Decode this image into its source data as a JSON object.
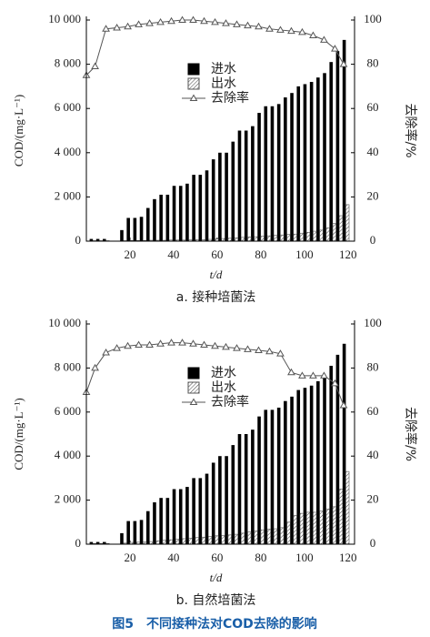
{
  "figure_caption": "图5　不同接种法对COD去除的影响",
  "chart_data": [
    {
      "type": "bar",
      "title": "a. 接种培菌法",
      "xlabel": "t/d",
      "ylabel": "COD/(mg·L⁻¹)",
      "y2label": "去除率/%",
      "x": [
        3,
        6,
        9,
        17,
        20,
        23,
        26,
        29,
        32,
        35,
        38,
        41,
        44,
        47,
        50,
        53,
        56,
        59,
        62,
        65,
        68,
        71,
        74,
        77,
        80,
        83,
        86,
        89,
        92,
        95,
        98,
        101,
        104,
        107,
        110,
        113,
        116,
        119
      ],
      "series": [
        {
          "name": "进水",
          "color": "#000000",
          "values": [
            100,
            100,
            100,
            500,
            1050,
            1050,
            1100,
            1500,
            1900,
            2100,
            2100,
            2500,
            2500,
            2600,
            3000,
            3000,
            3200,
            3700,
            4000,
            4000,
            4500,
            5000,
            5000,
            5200,
            5800,
            6100,
            6100,
            6200,
            6500,
            6700,
            7000,
            7100,
            7200,
            7400,
            7600,
            8100,
            8600,
            9100
          ]
        },
        {
          "name": "出水",
          "color": "#555555",
          "values": [
            20,
            20,
            20,
            20,
            30,
            30,
            30,
            40,
            40,
            40,
            50,
            50,
            50,
            60,
            70,
            70,
            80,
            100,
            120,
            130,
            150,
            170,
            190,
            200,
            220,
            240,
            260,
            280,
            300,
            320,
            360,
            400,
            450,
            500,
            600,
            800,
            1150,
            1650
          ]
        },
        {
          "name": "去除率",
          "color": "#555555",
          "axis": "y2",
          "x": [
            0,
            4,
            9,
            14,
            19,
            24,
            29,
            34,
            39,
            44,
            49,
            54,
            59,
            64,
            69,
            74,
            79,
            84,
            89,
            94,
            99,
            104,
            109,
            114,
            118
          ],
          "values": [
            75,
            79,
            96,
            96.5,
            97,
            98,
            98.5,
            99,
            99.5,
            100,
            100,
            99.5,
            99,
            98.5,
            98,
            97.5,
            97,
            96,
            95.5,
            95,
            94.5,
            93,
            91,
            87,
            80
          ]
        }
      ],
      "xlim": [
        0,
        123
      ],
      "xticks": [
        20,
        40,
        60,
        80,
        100,
        120
      ],
      "ylim": [
        0,
        10000
      ],
      "yticks": [
        0,
        {
          "value": 2000,
          "label": "2 000"
        },
        {
          "value": 4000,
          "label": "4 000"
        },
        {
          "value": 6000,
          "label": "6 000"
        },
        {
          "value": 8000,
          "label": "8 000"
        },
        {
          "value": 10000,
          "label": "10 000"
        }
      ],
      "y2lim": [
        0,
        100
      ],
      "y2ticks": [
        0,
        20,
        40,
        60,
        80,
        100
      ]
    },
    {
      "type": "bar",
      "title": "b. 自然培菌法",
      "xlabel": "t/d",
      "ylabel": "COD/(mg·L⁻¹)",
      "y2label": "去除率/%",
      "x": [
        3,
        6,
        9,
        17,
        20,
        23,
        26,
        29,
        32,
        35,
        38,
        41,
        44,
        47,
        50,
        53,
        56,
        59,
        62,
        65,
        68,
        71,
        74,
        77,
        80,
        83,
        86,
        89,
        92,
        95,
        98,
        101,
        104,
        107,
        110,
        113,
        116,
        119
      ],
      "series": [
        {
          "name": "进水",
          "color": "#000000",
          "values": [
            100,
            100,
            100,
            500,
            1050,
            1050,
            1100,
            1500,
            1900,
            2100,
            2100,
            2500,
            2500,
            2600,
            3000,
            3000,
            3200,
            3700,
            4000,
            4000,
            4500,
            5000,
            5000,
            5200,
            5800,
            6100,
            6100,
            6200,
            6500,
            6700,
            7000,
            7100,
            7200,
            7400,
            7600,
            8100,
            8600,
            9100
          ]
        },
        {
          "name": "出水",
          "color": "#555555",
          "values": [
            30,
            30,
            30,
            50,
            80,
            90,
            100,
            120,
            150,
            180,
            200,
            220,
            250,
            270,
            300,
            320,
            350,
            380,
            400,
            420,
            450,
            500,
            550,
            600,
            650,
            680,
            700,
            750,
            1000,
            1300,
            1400,
            1450,
            1450,
            1500,
            1600,
            1700,
            2500,
            3300
          ]
        },
        {
          "name": "去除率",
          "color": "#555555",
          "axis": "y2",
          "x": [
            0,
            4,
            9,
            14,
            19,
            24,
            29,
            34,
            39,
            44,
            49,
            54,
            59,
            64,
            69,
            74,
            79,
            84,
            89,
            94,
            99,
            104,
            109,
            114,
            118
          ],
          "values": [
            69,
            80,
            87,
            89,
            90,
            90.5,
            90.5,
            91,
            91.5,
            91.5,
            91,
            90.5,
            90,
            89.5,
            89,
            88.5,
            88,
            87.5,
            86.5,
            78,
            76.5,
            76.5,
            76.5,
            73,
            63
          ]
        }
      ],
      "xlim": [
        0,
        123
      ],
      "xticks": [
        20,
        40,
        60,
        80,
        100,
        120
      ],
      "ylim": [
        0,
        10000
      ],
      "yticks": [
        0,
        {
          "value": 2000,
          "label": "2 000"
        },
        {
          "value": 4000,
          "label": "4 000"
        },
        {
          "value": 6000,
          "label": "6 000"
        },
        {
          "value": 8000,
          "label": "8 000"
        },
        {
          "value": 10000,
          "label": "10 000"
        }
      ],
      "y2lim": [
        0,
        100
      ],
      "y2ticks": [
        0,
        20,
        40,
        60,
        80,
        100
      ]
    }
  ]
}
